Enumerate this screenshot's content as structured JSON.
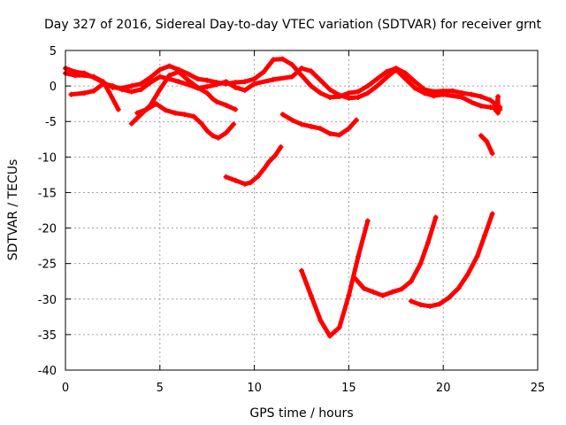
{
  "chart_data": {
    "type": "line",
    "title": "Day 327 of 2016, Sidereal Day-to-day VTEC variation (SDTVAR) for receiver grnt",
    "xlabel": "GPS time / hours",
    "ylabel": "SDTVAR / TECUs",
    "xlim": [
      0,
      25
    ],
    "ylim": [
      -40,
      5
    ],
    "xticks": [
      "0",
      "5",
      "10",
      "15",
      "20",
      "25"
    ],
    "yticks": [
      "5",
      "0",
      "-5",
      "-10",
      "-15",
      "-20",
      "-25",
      "-30",
      "-35",
      "-40"
    ],
    "grid": true,
    "color": "#ff0000",
    "series": [
      {
        "values": [
          [
            0,
            2.5
          ],
          [
            0.5,
            2.0
          ],
          [
            1.0,
            1.8
          ],
          [
            1.5,
            1.2
          ],
          [
            2.0,
            0.5
          ],
          [
            2.5,
            -0.2
          ],
          [
            3.0,
            -0.3
          ],
          [
            3.5,
            0.0
          ],
          [
            4.0,
            0.3
          ],
          [
            4.5,
            1.2
          ],
          [
            5.0,
            2.3
          ],
          [
            5.5,
            2.8
          ],
          [
            6.0,
            2.3
          ],
          [
            6.5,
            1.7
          ],
          [
            7.0,
            1.0
          ],
          [
            7.5,
            0.8
          ],
          [
            8.0,
            0.5
          ],
          [
            8.5,
            0.3
          ],
          [
            9.0,
            0.5
          ],
          [
            9.5,
            0.6
          ],
          [
            10.0,
            1.0
          ],
          [
            10.5,
            2.0
          ],
          [
            11.0,
            3.7
          ],
          [
            11.5,
            3.8
          ],
          [
            12.0,
            3.0
          ],
          [
            12.5,
            1.5
          ],
          [
            13.0,
            0.0
          ],
          [
            13.5,
            -1.0
          ],
          [
            14.0,
            -1.6
          ],
          [
            14.5,
            -1.5
          ],
          [
            15.0,
            -1.0
          ],
          [
            15.5,
            -0.8
          ],
          [
            16.0,
            0.0
          ],
          [
            16.5,
            1.0
          ],
          [
            17.0,
            2.0
          ],
          [
            17.5,
            2.5
          ],
          [
            18.0,
            1.8
          ],
          [
            18.5,
            0.6
          ],
          [
            19.0,
            -0.5
          ],
          [
            19.5,
            -0.8
          ],
          [
            20.0,
            -0.7
          ],
          [
            20.5,
            -0.7
          ],
          [
            21.0,
            -1.0
          ],
          [
            21.5,
            -1.2
          ],
          [
            22.0,
            -1.5
          ],
          [
            22.5,
            -2.0
          ],
          [
            23.0,
            -3.0
          ]
        ]
      },
      {
        "values": [
          [
            0.3,
            -1.2
          ],
          [
            1.0,
            -1.0
          ],
          [
            1.5,
            -0.7
          ],
          [
            2.0,
            0.3
          ],
          [
            2.5,
            0.0
          ],
          [
            3.0,
            -0.5
          ],
          [
            3.5,
            -0.8
          ],
          [
            4.0,
            -0.5
          ],
          [
            4.5,
            0.5
          ],
          [
            5.0,
            1.3
          ],
          [
            5.5,
            1.0
          ],
          [
            6.0,
            0.6
          ],
          [
            6.5,
            0.2
          ],
          [
            7.0,
            -0.3
          ],
          [
            7.5,
            -0.1
          ],
          [
            8.0,
            0.2
          ],
          [
            8.5,
            0.6
          ],
          [
            9.0,
            -0.2
          ],
          [
            9.5,
            -0.6
          ],
          [
            10.0,
            0.3
          ],
          [
            11.0,
            0.9
          ],
          [
            12.0,
            1.3
          ],
          [
            12.5,
            2.5
          ],
          [
            13.0,
            2.1
          ],
          [
            13.5,
            0.8
          ],
          [
            14.0,
            -0.5
          ],
          [
            14.5,
            -1.3
          ],
          [
            15.0,
            -1.7
          ],
          [
            15.5,
            -1.6
          ],
          [
            16.0,
            -1.0
          ],
          [
            16.5,
            0.0
          ],
          [
            17.0,
            1.2
          ],
          [
            17.5,
            2.3
          ],
          [
            18.0,
            1.0
          ],
          [
            18.5,
            -0.3
          ],
          [
            19.0,
            -1.0
          ],
          [
            19.5,
            -1.4
          ],
          [
            20.0,
            -1.2
          ],
          [
            21.0,
            -1.6
          ],
          [
            21.5,
            -2.3
          ],
          [
            22.0,
            -2.8
          ],
          [
            22.5,
            -3.0
          ],
          [
            23.0,
            -3.3
          ]
        ]
      },
      {
        "values": [
          [
            0,
            1.8
          ],
          [
            0.5,
            1.5
          ],
          [
            1.0,
            1.5
          ],
          [
            1.5,
            1.3
          ],
          [
            2.0,
            0.6
          ],
          [
            2.3,
            -0.8
          ],
          [
            2.6,
            -2.3
          ],
          [
            2.8,
            -3.3
          ]
        ]
      },
      {
        "values": [
          [
            3.5,
            -5.3
          ],
          [
            4.0,
            -4.0
          ],
          [
            4.5,
            -2.7
          ],
          [
            5.0,
            -0.5
          ],
          [
            5.5,
            1.5
          ],
          [
            6.0,
            2.0
          ],
          [
            6.5,
            0.8
          ],
          [
            7.0,
            -0.2
          ],
          [
            7.5,
            -1.0
          ],
          [
            7.8,
            -1.8
          ],
          [
            8.0,
            -2.2
          ],
          [
            8.5,
            -2.7
          ],
          [
            9.0,
            -3.3
          ]
        ]
      },
      {
        "values": [
          [
            3.8,
            -3.8
          ],
          [
            4.3,
            -3.3
          ],
          [
            4.8,
            -2.5
          ],
          [
            5.3,
            -3.4
          ],
          [
            5.8,
            -3.8
          ],
          [
            6.3,
            -4.0
          ],
          [
            6.8,
            -4.3
          ],
          [
            7.2,
            -5.3
          ],
          [
            7.5,
            -6.3
          ],
          [
            7.8,
            -7.0
          ],
          [
            8.1,
            -7.3
          ],
          [
            8.5,
            -6.6
          ],
          [
            8.9,
            -5.4
          ]
        ]
      },
      {
        "values": [
          [
            8.5,
            -12.8
          ],
          [
            9.0,
            -13.3
          ],
          [
            9.5,
            -13.8
          ],
          [
            9.8,
            -13.6
          ],
          [
            10.2,
            -12.7
          ],
          [
            10.5,
            -11.7
          ],
          [
            10.8,
            -10.6
          ],
          [
            11.1,
            -9.8
          ],
          [
            11.4,
            -8.6
          ]
        ]
      },
      {
        "values": [
          [
            11.5,
            -4.0
          ],
          [
            12.0,
            -4.8
          ],
          [
            12.5,
            -5.4
          ],
          [
            13.0,
            -5.7
          ],
          [
            13.5,
            -6.0
          ],
          [
            14.0,
            -6.7
          ],
          [
            14.5,
            -6.9
          ],
          [
            15.0,
            -6.0
          ],
          [
            15.4,
            -4.8
          ]
        ]
      },
      {
        "values": [
          [
            12.5,
            -26.0
          ],
          [
            13.0,
            -29.5
          ],
          [
            13.5,
            -33.0
          ],
          [
            14.0,
            -35.2
          ],
          [
            14.5,
            -34.0
          ],
          [
            15.0,
            -29.5
          ],
          [
            15.5,
            -24.0
          ],
          [
            16.0,
            -19.0
          ]
        ]
      },
      {
        "values": [
          [
            15.3,
            -27.0
          ],
          [
            15.8,
            -28.5
          ],
          [
            16.3,
            -29.0
          ],
          [
            16.8,
            -29.5
          ],
          [
            17.3,
            -29.0
          ],
          [
            17.8,
            -28.6
          ],
          [
            18.3,
            -27.5
          ],
          [
            18.8,
            -25.0
          ],
          [
            19.2,
            -22.0
          ],
          [
            19.6,
            -18.5
          ]
        ]
      },
      {
        "values": [
          [
            18.3,
            -30.3
          ],
          [
            18.8,
            -30.8
          ],
          [
            19.3,
            -31.0
          ],
          [
            19.8,
            -30.7
          ],
          [
            20.3,
            -29.8
          ],
          [
            20.8,
            -28.5
          ],
          [
            21.3,
            -26.5
          ],
          [
            21.8,
            -24.0
          ],
          [
            22.2,
            -21.0
          ],
          [
            22.6,
            -18.0
          ]
        ]
      },
      {
        "values": [
          [
            22.0,
            -7.0
          ],
          [
            22.3,
            -7.8
          ],
          [
            22.6,
            -9.5
          ]
        ]
      },
      {
        "values": [
          [
            22.7,
            -2.5
          ],
          [
            22.8,
            -3.5
          ],
          [
            22.9,
            -1.5
          ],
          [
            22.9,
            -3.8
          ]
        ]
      }
    ]
  }
}
